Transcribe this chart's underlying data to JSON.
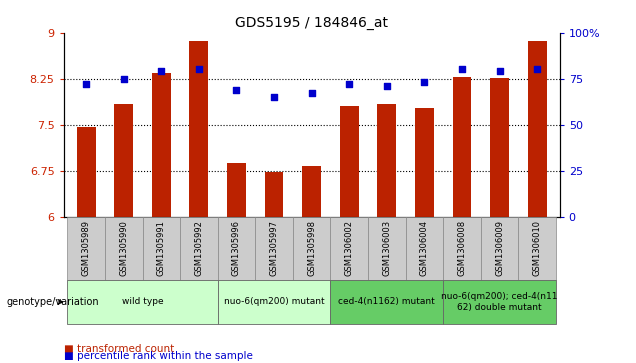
{
  "title": "GDS5195 / 184846_at",
  "samples": [
    "GSM1305989",
    "GSM1305990",
    "GSM1305991",
    "GSM1305992",
    "GSM1305996",
    "GSM1305997",
    "GSM1305998",
    "GSM1306002",
    "GSM1306003",
    "GSM1306004",
    "GSM1306008",
    "GSM1306009",
    "GSM1306010"
  ],
  "bar_values": [
    7.46,
    7.84,
    8.35,
    8.87,
    6.88,
    6.72,
    6.83,
    7.8,
    7.84,
    7.77,
    8.28,
    8.26,
    8.87
  ],
  "dot_values": [
    72,
    75,
    79,
    80,
    69,
    65,
    67,
    72,
    71,
    73,
    80,
    79,
    80
  ],
  "ylim_left": [
    6,
    9
  ],
  "ylim_right": [
    0,
    100
  ],
  "yticks_left": [
    6,
    6.75,
    7.5,
    8.25,
    9
  ],
  "yticks_right": [
    0,
    25,
    50,
    75,
    100
  ],
  "bar_color": "#BB2200",
  "dot_color": "#0000CC",
  "groups": [
    {
      "label": "wild type",
      "start": 0,
      "end": 3,
      "color": "#CCFFCC"
    },
    {
      "label": "nuo-6(qm200) mutant",
      "start": 4,
      "end": 6,
      "color": "#CCFFCC"
    },
    {
      "label": "ced-4(n1162) mutant",
      "start": 7,
      "end": 9,
      "color": "#66CC66"
    },
    {
      "label": "nuo-6(qm200); ced-4(n11\n62) double mutant",
      "start": 10,
      "end": 12,
      "color": "#66CC66"
    }
  ],
  "legend_items": [
    {
      "label": "transformed count",
      "color": "#BB2200"
    },
    {
      "label": "percentile rank within the sample",
      "color": "#0000CC"
    }
  ],
  "genotype_label": "genotype/variation",
  "sample_box_color": "#CCCCCC",
  "sample_box_edge": "#888888"
}
